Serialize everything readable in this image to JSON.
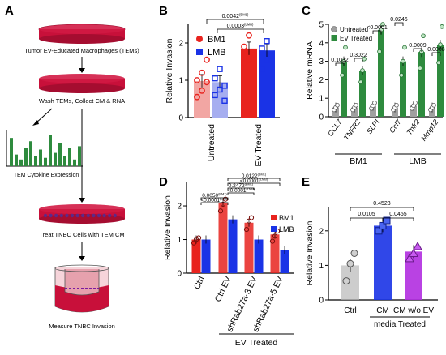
{
  "colors": {
    "bm1": "#e8231e",
    "lmb": "#1a33e6",
    "bm1_light": "#f2a6a3",
    "lmb_light": "#a6aef0",
    "green": "#2e8b3e",
    "grey": "#a0a0a0",
    "dish_red": "#c8103a",
    "purple": "#b12ee0",
    "ctrl_grey": "#b8b8b8"
  },
  "panel_a": {
    "letter": "A",
    "steps": [
      "Tumor EV-Educated Macrophages (TEMs)",
      "Wash TEMs, Collect CM & RNA",
      "Treat TNBC Cells with TEM CM",
      "Measure TNBC Invasion"
    ],
    "cytokine_label": "TEM Cytokine Expression",
    "cytokine_bars": [
      0.85,
      0.35,
      0.2,
      0.55,
      0.75,
      0.3,
      0.5,
      0.25,
      0.95,
      0.4,
      0.7,
      0.3,
      0.55,
      0.2,
      0.6
    ]
  },
  "chart_data": [
    {
      "panel": "B",
      "type": "bar",
      "categories": [
        "Untreated",
        "EV Treated"
      ],
      "ylabel": "Relative Invasion",
      "xlabel": "",
      "ylim": [
        0,
        2.5
      ],
      "yticks": [
        "0",
        "1",
        "2"
      ],
      "series": [
        {
          "name": "BM1",
          "values": [
            0.98,
            1.85
          ],
          "points": [
            [
              0.55,
              0.72,
              0.95,
              1.0,
              1.2,
              1.55
            ],
            [
              1.45,
              1.55,
              1.7,
              1.9,
              2.2
            ]
          ]
        },
        {
          "name": "LMB",
          "values": [
            0.95,
            1.8
          ],
          "points": [
            [
              0.6,
              0.75,
              0.85,
              1.05,
              1.3,
              0.45
            ],
            [
              1.3,
              1.55,
              1.7,
              1.85,
              2.05,
              1.65
            ]
          ]
        }
      ],
      "legend": "top-left",
      "annotations": [
        {
          "text": "0.0042",
          "sup": "(BM1)"
        },
        {
          "text": "0.0003",
          "sup": "(LMB)"
        }
      ]
    },
    {
      "panel": "C",
      "type": "bar",
      "ylabel": "Relative mRNA",
      "ylim": [
        0,
        5
      ],
      "yticks": [
        "0",
        "1",
        "2",
        "3",
        "4",
        "5"
      ],
      "legend": "top-left",
      "groups": [
        {
          "label": "BM1",
          "genes": [
            {
              "name": "CCL7",
              "values": [
                0.5,
                3.0
              ]
            },
            {
              "name": "TNFR2",
              "values": [
                0.5,
                2.5
              ]
            },
            {
              "name": "SLPI",
              "values": [
                0.6,
                4.7
              ]
            }
          ]
        },
        {
          "label": "LMB",
          "genes": [
            {
              "name": "Ccl7",
              "values": [
                0.5,
                3.0
              ]
            },
            {
              "name": "Tnfr2",
              "values": [
                0.6,
                3.5
              ]
            },
            {
              "name": "Mmp12",
              "values": [
                0.5,
                3.9
              ]
            }
          ]
        }
      ],
      "series": [
        {
          "name": "Untreated"
        },
        {
          "name": "EV Treated"
        }
      ],
      "annotations": [
        "0.1032",
        "0.3022",
        "<0.0001",
        "0.0246",
        "0.0009",
        "0.0008"
      ]
    },
    {
      "panel": "D",
      "type": "bar",
      "categories": [
        "Ctrl",
        "Ctrl EV",
        "shRab27a-3 EV",
        "shRab27a-5 EV"
      ],
      "ylabel": "Relative Invasion",
      "ylim": [
        0,
        2.7
      ],
      "yticks": [
        "0",
        "1",
        "2"
      ],
      "series": [
        {
          "name": "BM1",
          "values": [
            1.0,
            2.1,
            1.5,
            1.15
          ],
          "points": [
            [
              0.9,
              1.0,
              1.05
            ],
            [
              1.85,
              2.05,
              2.2
            ],
            [
              1.3,
              1.55,
              1.65
            ],
            [
              0.95,
              1.1,
              1.25
            ]
          ]
        },
        {
          "name": "LMB",
          "values": [
            1.0,
            1.6,
            1.0,
            0.68
          ],
          "points": [
            [
              0.95,
              1.0,
              1.05
            ],
            [
              1.55,
              1.6,
              1.62
            ],
            [
              0.97,
              1.0,
              1.02
            ],
            [
              0.62,
              0.68,
              0.72
            ]
          ]
        }
      ],
      "legend": "right",
      "group_label": "EV Treated",
      "annotations": [
        {
          "text": "0.0122",
          "sup": "(BM1)"
        },
        {
          "text": "<0.0001",
          "sup": "(LMB)"
        },
        {
          "text": "0.2472",
          "sup": "(BM1)"
        },
        {
          "text": "<0.0001",
          "sup": "(LMB)"
        },
        {
          "text": "0.0050",
          "sup": "(BM1)"
        },
        {
          "text": "<0.0001",
          "sup": "(LMB)"
        }
      ]
    },
    {
      "panel": "E",
      "type": "bar",
      "categories": [
        "Ctrl",
        "CM",
        "CM w/o EV"
      ],
      "ylabel": "Relative Invasion",
      "ylim": [
        0,
        2.7
      ],
      "yticks": [
        "0",
        "1",
        "2"
      ],
      "series": [
        {
          "name": "",
          "values": [
            1.0,
            2.15,
            1.4
          ],
          "points": [
            [
              0.55,
              1.05,
              1.35
            ],
            [
              2.0,
              2.15,
              2.3
            ],
            [
              1.2,
              1.35,
              1.55
            ]
          ]
        }
      ],
      "group_label": "media Treated",
      "annotations": [
        "0.4523",
        "0.0105",
        "0.0455"
      ]
    }
  ]
}
